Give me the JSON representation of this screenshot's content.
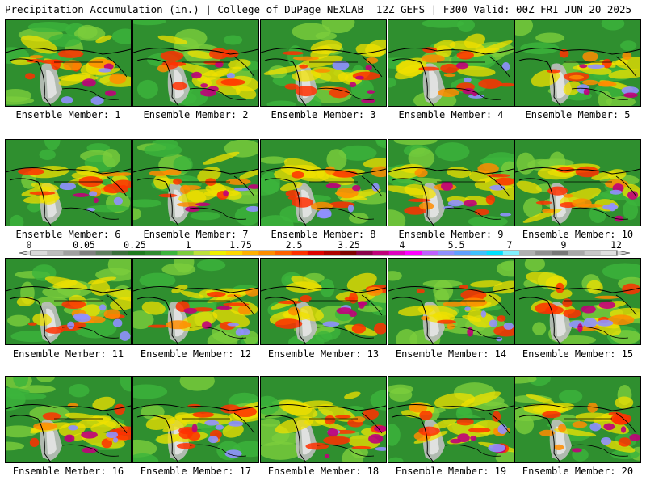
{
  "header": {
    "title": "Precipitation Accumulation (in.) | College of DuPage NEXLAB",
    "run_info": "12Z GEFS | F300 Valid: 00Z FRI JUN 20 2025"
  },
  "panels": [
    {
      "caption": "Ensemble Member: 1"
    },
    {
      "caption": "Ensemble Member: 2"
    },
    {
      "caption": "Ensemble Member: 3"
    },
    {
      "caption": "Ensemble Member: 4"
    },
    {
      "caption": "Ensemble Member: 5"
    },
    {
      "caption": "Ensemble Member: 6"
    },
    {
      "caption": "Ensemble Member: 7"
    },
    {
      "caption": "Ensemble Member: 8"
    },
    {
      "caption": "Ensemble Member: 9"
    },
    {
      "caption": "Ensemble Member: 10"
    },
    {
      "caption": "Ensemble Member: 11"
    },
    {
      "caption": "Ensemble Member: 12"
    },
    {
      "caption": "Ensemble Member: 13"
    },
    {
      "caption": "Ensemble Member: 14"
    },
    {
      "caption": "Ensemble Member: 15"
    },
    {
      "caption": "Ensemble Member: 16"
    },
    {
      "caption": "Ensemble Member: 17"
    },
    {
      "caption": "Ensemble Member: 18"
    },
    {
      "caption": "Ensemble Member: 19"
    },
    {
      "caption": "Ensemble Member: 20"
    }
  ],
  "colorbar": {
    "labels": [
      "0",
      "0.05",
      "0.25",
      "1",
      "1.75",
      "2.5",
      "3.25",
      "4",
      "5.5",
      "7",
      "9",
      "12"
    ],
    "colors": [
      "#d9d9d9",
      "#bdbdbd",
      "#a0a0a0",
      "#7f7f7f",
      "#5e7e5e",
      "#3a6f3a",
      "#1f7a1f",
      "#2e8b2e",
      "#3cb43c",
      "#7ccd3c",
      "#bde03c",
      "#f0f000",
      "#ffd700",
      "#ffb000",
      "#ff8c00",
      "#ff6000",
      "#ff3000",
      "#e00000",
      "#b00000",
      "#800000",
      "#8b004b",
      "#c0007a",
      "#e000c0",
      "#ff00ff",
      "#c060ff",
      "#9090ff",
      "#60a0ff",
      "#40c0ff",
      "#00e0ff",
      "#80f0ff",
      "#b0b0b0",
      "#909090",
      "#787878",
      "#a8a8a8",
      "#c8c8c8",
      "#e0e0e0"
    ]
  }
}
